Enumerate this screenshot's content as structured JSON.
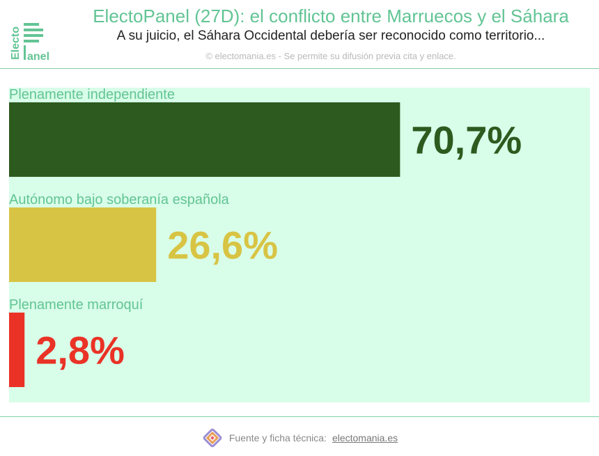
{
  "logo": {
    "line1": "Electo",
    "line2": "anel"
  },
  "header": {
    "title": "ElectoPanel (27D): el conflicto entre Marruecos y el Sáhara",
    "subtitle": "A su juicio, el Sáhara Occidental debería ser reconocido como territorio...",
    "credit": "© electomania.es - Se permite su difusión previa cita y enlace."
  },
  "footer": {
    "label": "Fuente y ficha técnica:",
    "link": "electomania.es",
    "icon": "electomania-logo-icon"
  },
  "colors": {
    "accent": "#62c494",
    "plot_bg": "#d8fde9"
  },
  "chart_data": {
    "type": "bar",
    "orientation": "horizontal",
    "categories": [
      "Plenamente independiente",
      "Autónomo bajo soberanía española",
      "Plenamente marroquí"
    ],
    "values": [
      70.7,
      26.6,
      2.8
    ],
    "value_labels": [
      "70,7%",
      "26,6%",
      "2,8%"
    ],
    "colors": [
      "#2d5a1e",
      "#d8c444",
      "#ea3226"
    ],
    "xlim": [
      0,
      100
    ],
    "grid": false,
    "legend": "none"
  }
}
